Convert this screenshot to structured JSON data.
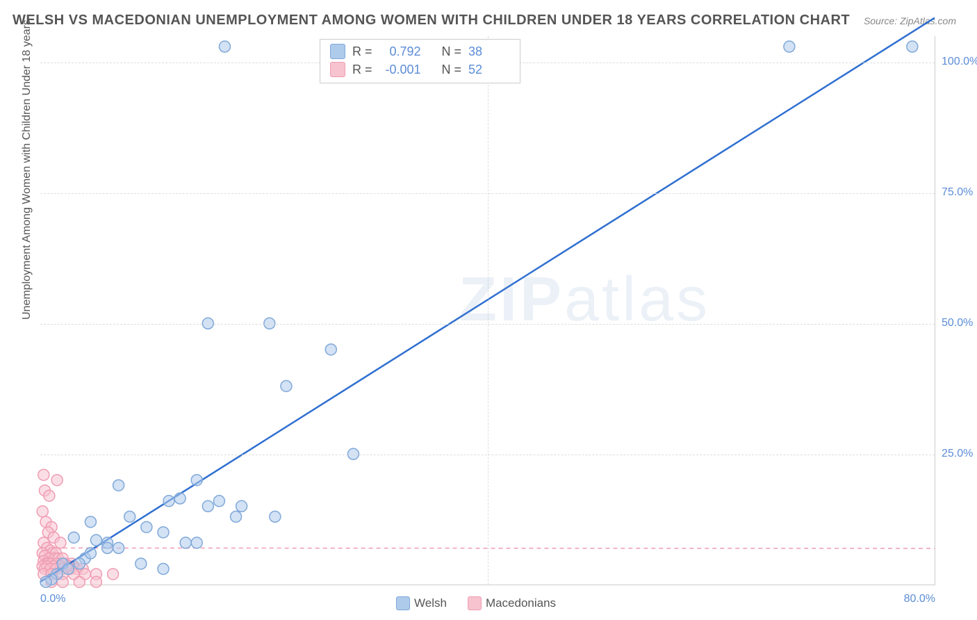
{
  "title": "WELSH VS MACEDONIAN UNEMPLOYMENT AMONG WOMEN WITH CHILDREN UNDER 18 YEARS CORRELATION CHART",
  "source": "Source: ZipAtlas.com",
  "ylabel": "Unemployment Among Women with Children Under 18 years",
  "watermark_bold": "ZIP",
  "watermark_thin": "atlas",
  "chart": {
    "type": "scatter",
    "xlim": [
      0,
      80
    ],
    "ylim": [
      0,
      105
    ],
    "xticks": [
      {
        "v": 0,
        "l": "0.0%"
      },
      {
        "v": 80,
        "l": "80.0%"
      }
    ],
    "yticks": [
      {
        "v": 25,
        "l": "25.0%"
      },
      {
        "v": 50,
        "l": "50.0%"
      },
      {
        "v": 75,
        "l": "75.0%"
      },
      {
        "v": 100,
        "l": "100.0%"
      }
    ],
    "grid_color": "#dddddd",
    "background_color": "#ffffff",
    "marker_radius": 8,
    "marker_stroke_width": 1.5,
    "series": [
      {
        "name": "Welsh",
        "fill": "#aecbeb",
        "stroke": "#7fa8d9",
        "fill_opacity": 0.55,
        "regression": {
          "slope": 1.35,
          "intercept": 0.5,
          "color": "#2f6fd0",
          "width": 2.5
        },
        "R": "0.792",
        "N": "38",
        "points": [
          [
            16.5,
            103
          ],
          [
            67,
            103
          ],
          [
            78,
            103
          ],
          [
            15,
            50
          ],
          [
            20.5,
            50
          ],
          [
            26,
            45
          ],
          [
            22,
            38
          ],
          [
            28,
            25
          ],
          [
            7,
            19
          ],
          [
            14,
            20
          ],
          [
            11.5,
            16
          ],
          [
            12.5,
            16.5
          ],
          [
            16,
            16
          ],
          [
            15,
            15
          ],
          [
            18,
            15
          ],
          [
            17.5,
            13
          ],
          [
            21,
            13
          ],
          [
            6,
            8
          ],
          [
            8,
            13
          ],
          [
            4.5,
            12
          ],
          [
            9.5,
            11
          ],
          [
            11,
            10
          ],
          [
            13,
            8
          ],
          [
            14,
            8
          ],
          [
            4,
            5
          ],
          [
            3,
            9
          ],
          [
            2,
            4
          ],
          [
            5,
            8.5
          ],
          [
            6,
            7
          ],
          [
            7,
            7
          ],
          [
            1.5,
            2
          ],
          [
            2.5,
            3
          ],
          [
            3.5,
            4
          ],
          [
            4.5,
            6
          ],
          [
            9,
            4
          ],
          [
            11,
            3
          ],
          [
            1,
            1
          ],
          [
            0.5,
            0.5
          ]
        ]
      },
      {
        "name": "Macedonians",
        "fill": "#f7c3cf",
        "stroke": "#ef9cb2",
        "fill_opacity": 0.55,
        "regression": {
          "slope": -0.001,
          "intercept": 7,
          "color": "#ef9cb2",
          "width": 1.5,
          "dash": "6,5"
        },
        "R": "-0.001",
        "N": "52",
        "points": [
          [
            0.3,
            21
          ],
          [
            0.4,
            18
          ],
          [
            0.8,
            17
          ],
          [
            0.2,
            14
          ],
          [
            1.5,
            20
          ],
          [
            0.5,
            12
          ],
          [
            1,
            11
          ],
          [
            0.7,
            10
          ],
          [
            1.2,
            9
          ],
          [
            1.8,
            8
          ],
          [
            0.3,
            8
          ],
          [
            0.6,
            7
          ],
          [
            0.9,
            6.5
          ],
          [
            1.1,
            6
          ],
          [
            1.4,
            6
          ],
          [
            0.2,
            6
          ],
          [
            0.4,
            5.5
          ],
          [
            0.8,
            5
          ],
          [
            1.3,
            5
          ],
          [
            1.6,
            5
          ],
          [
            2,
            5
          ],
          [
            0.3,
            4.5
          ],
          [
            0.5,
            4
          ],
          [
            0.7,
            4
          ],
          [
            1,
            4
          ],
          [
            1.5,
            4
          ],
          [
            2.2,
            4
          ],
          [
            2.8,
            4
          ],
          [
            0.2,
            3.5
          ],
          [
            0.6,
            3.5
          ],
          [
            1.2,
            3.5
          ],
          [
            1.8,
            3.5
          ],
          [
            2.5,
            3.5
          ],
          [
            3,
            3.5
          ],
          [
            0.4,
            3
          ],
          [
            0.9,
            3
          ],
          [
            1.4,
            3
          ],
          [
            2,
            3
          ],
          [
            2.7,
            3
          ],
          [
            3.3,
            3
          ],
          [
            3.8,
            3
          ],
          [
            0.3,
            2
          ],
          [
            1,
            2
          ],
          [
            2,
            2
          ],
          [
            3,
            2
          ],
          [
            4,
            2
          ],
          [
            5,
            2
          ],
          [
            6.5,
            2
          ],
          [
            1,
            0.5
          ],
          [
            2,
            0.5
          ],
          [
            3.5,
            0.5
          ],
          [
            5,
            0.5
          ]
        ]
      }
    ]
  },
  "stats_box": {
    "rows": [
      {
        "swatch_fill": "#aecbeb",
        "swatch_stroke": "#7fa8d9",
        "r_label": "R =",
        "r_val": "0.792",
        "n_label": "N =",
        "n_val": "38"
      },
      {
        "swatch_fill": "#f7c3cf",
        "swatch_stroke": "#ef9cb2",
        "r_label": "R =",
        "r_val": "-0.001",
        "n_label": "N =",
        "n_val": "52"
      }
    ]
  },
  "bottom_legend": [
    {
      "swatch_fill": "#aecbeb",
      "swatch_stroke": "#7fa8d9",
      "label": "Welsh"
    },
    {
      "swatch_fill": "#f7c3cf",
      "swatch_stroke": "#ef9cb2",
      "label": "Macedonians"
    }
  ]
}
